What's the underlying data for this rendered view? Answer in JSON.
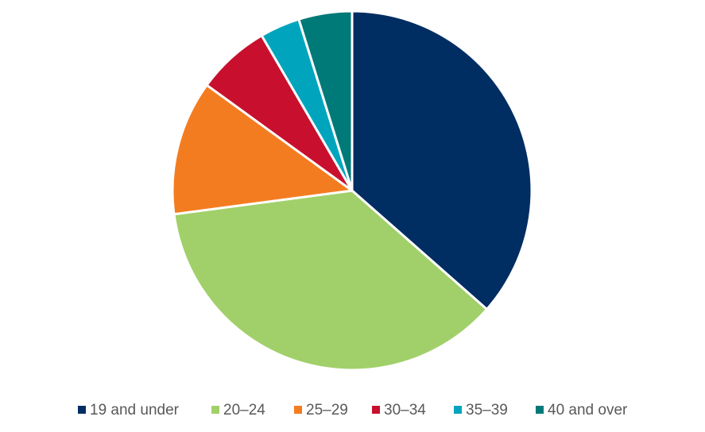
{
  "chart_data": {
    "type": "pie",
    "categories": [
      "19 and under",
      "20–24",
      "25–29",
      "30–34",
      "35–39",
      "40 and over"
    ],
    "values": [
      36.5,
      36.4,
      12.1,
      6.6,
      3.6,
      4.8
    ],
    "colors": [
      "#002d62",
      "#a1d06a",
      "#f47c20",
      "#c8102e",
      "#00a5bd",
      "#007a78"
    ],
    "legend": "bottom"
  }
}
